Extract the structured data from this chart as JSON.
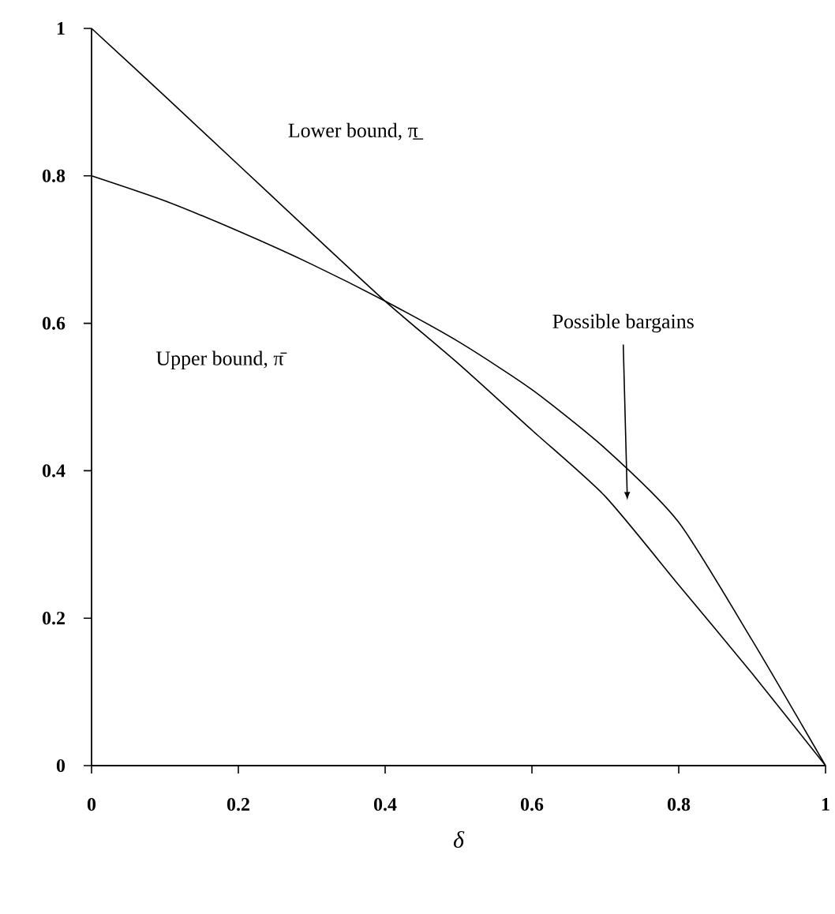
{
  "chart_data": {
    "type": "line",
    "xlabel": "δ",
    "x": [
      0,
      0.1,
      0.2,
      0.3,
      0.4,
      0.5,
      0.6,
      0.7,
      0.8,
      0.9,
      1
    ],
    "series": [
      {
        "color": "#000000",
        "values": [
          1,
          0.908,
          0.815,
          0.722,
          0.63,
          0.545,
          0.455,
          0.365,
          0.245,
          0.125,
          0
        ]
      },
      {
        "color": "#000000",
        "values": [
          0.8,
          0.766,
          0.725,
          0.68,
          0.63,
          0.575,
          0.51,
          0.43,
          0.33,
          0.17,
          0
        ]
      }
    ],
    "annotations": [
      "Lower bound, π̲",
      "Upper bound, π̄",
      "Possible bargains"
    ],
    "xlim": [
      0,
      1
    ],
    "ylim": [
      0,
      1
    ],
    "xticks": [
      0,
      0.2,
      0.4,
      0.6,
      0.8,
      1
    ],
    "yticks": [
      0,
      0.2,
      0.4,
      0.6,
      0.8,
      1
    ],
    "grid": false,
    "marker": "none",
    "line_style": "solid"
  }
}
